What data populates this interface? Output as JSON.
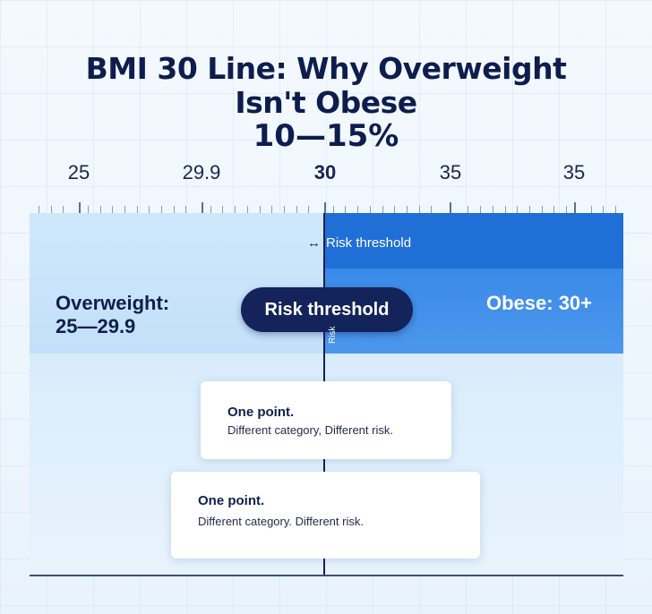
{
  "title": {
    "line1": "BMI 30 Line: Why Overweight",
    "line2": "Isn't Obese",
    "subtitle": "10—15%"
  },
  "scale": {
    "ticks": [
      "25",
      "29.9",
      "30",
      "35",
      "35"
    ],
    "threshold_value": "30"
  },
  "zones": {
    "overweight_label": "Overweight:",
    "overweight_range": "25—29.9",
    "obese_label": "Obese: 30+",
    "overweight_color": "#c9e3fa",
    "obese_color": "#1f6fd6"
  },
  "threshold": {
    "arrow_icon": "double-arrow-icon",
    "arrow_label": "Risk threshold",
    "pill_label": "Risk threshold",
    "vertical_label": "Risk"
  },
  "cards": [
    {
      "title": "One point.",
      "body": "Different category, Different risk."
    },
    {
      "title": "One point.",
      "body": "Different category. Different risk."
    }
  ]
}
